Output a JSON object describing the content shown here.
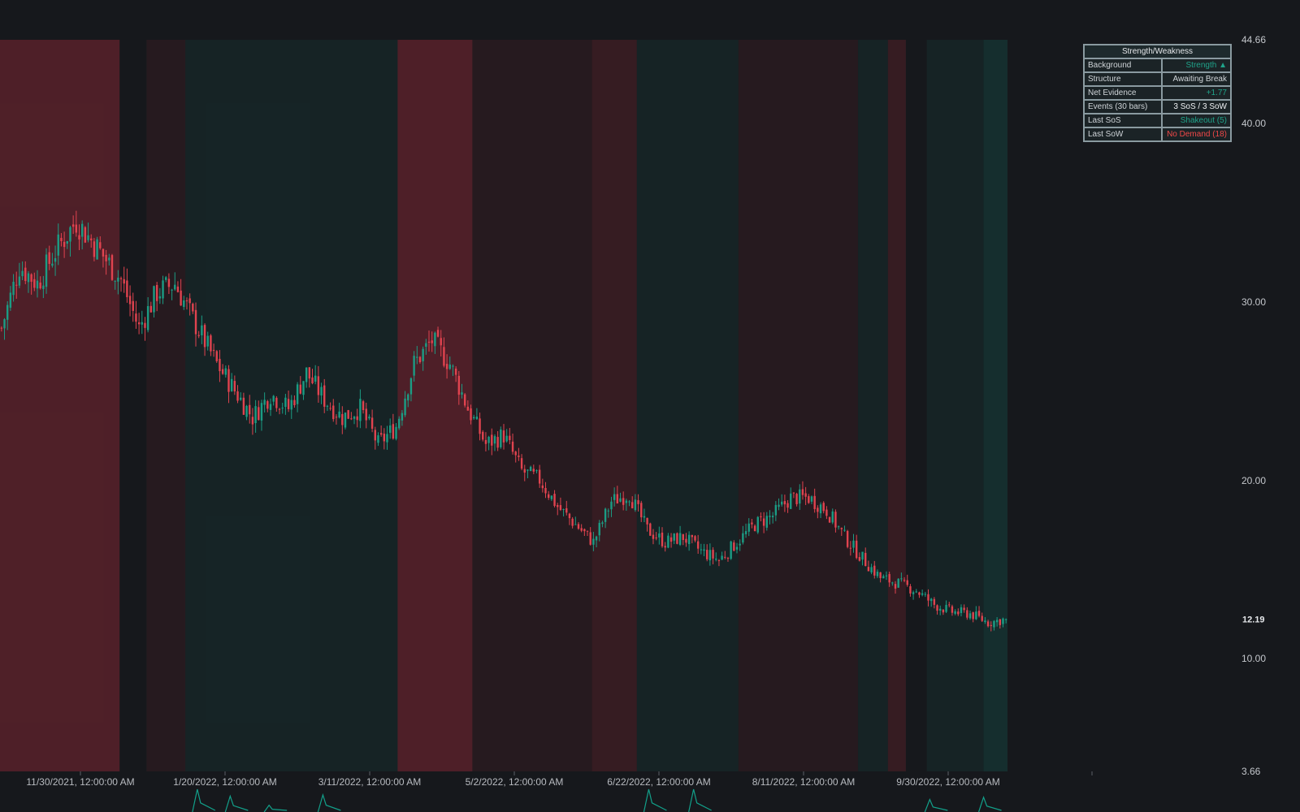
{
  "chart_data": {
    "type": "candlestick",
    "x_ticks": [
      "11/30/2021, 12:00:00 AM",
      "1/20/2022, 12:00:00 AM",
      "3/11/2022, 12:00:00 AM",
      "5/2/2022, 12:00:00 AM",
      "6/22/2022, 12:00:00 AM",
      "8/11/2022, 12:00:00 AM",
      "9/30/2022, 12:00:00 AM"
    ],
    "y_ticks": [
      "44.66",
      "40.00",
      "30.00",
      "20.00",
      "10.00",
      "3.66"
    ],
    "last_price_label": "12.19",
    "ylim": [
      3.66,
      44.66
    ],
    "close_path": [
      [
        0,
        28.5
      ],
      [
        6,
        32.0
      ],
      [
        12,
        31.0
      ],
      [
        18,
        32.8
      ],
      [
        25,
        34.5
      ],
      [
        32,
        33.0
      ],
      [
        40,
        31.2
      ],
      [
        46,
        28.5
      ],
      [
        52,
        30.5
      ],
      [
        58,
        31.0
      ],
      [
        64,
        29.0
      ],
      [
        72,
        26.5
      ],
      [
        78,
        25.0
      ],
      [
        84,
        23.5
      ],
      [
        90,
        24.8
      ],
      [
        96,
        24.0
      ],
      [
        102,
        26.0
      ],
      [
        108,
        24.5
      ],
      [
        114,
        23.5
      ],
      [
        120,
        24.0
      ],
      [
        126,
        22.0
      ],
      [
        132,
        23.0
      ],
      [
        138,
        26.5
      ],
      [
        144,
        27.8
      ],
      [
        150,
        26.5
      ],
      [
        156,
        24.0
      ],
      [
        162,
        22.0
      ],
      [
        168,
        22.5
      ],
      [
        174,
        20.5
      ],
      [
        180,
        20.0
      ],
      [
        186,
        18.5
      ],
      [
        192,
        17.5
      ],
      [
        198,
        16.5
      ],
      [
        204,
        18.8
      ],
      [
        210,
        19.2
      ],
      [
        216,
        17.2
      ],
      [
        222,
        16.5
      ],
      [
        228,
        16.8
      ],
      [
        234,
        16.0
      ],
      [
        240,
        15.5
      ],
      [
        246,
        16.5
      ],
      [
        252,
        17.5
      ],
      [
        258,
        18.0
      ],
      [
        264,
        19.0
      ],
      [
        270,
        19.0
      ],
      [
        276,
        18.3
      ],
      [
        282,
        16.8
      ],
      [
        288,
        15.6
      ],
      [
        294,
        14.5
      ],
      [
        300,
        14.2
      ],
      [
        306,
        13.8
      ],
      [
        312,
        13.0
      ],
      [
        318,
        12.6
      ],
      [
        324,
        12.5
      ],
      [
        330,
        12.0
      ],
      [
        336,
        12.19
      ]
    ],
    "regimes": [
      {
        "start": 0,
        "end": 40,
        "kind": "weakness-strong"
      },
      {
        "start": 40,
        "end": 49,
        "kind": "neutral"
      },
      {
        "start": 49,
        "end": 62,
        "kind": "weakness-faint"
      },
      {
        "start": 62,
        "end": 133,
        "kind": "strength-faint"
      },
      {
        "start": 133,
        "end": 158,
        "kind": "weakness-strong"
      },
      {
        "start": 158,
        "end": 198,
        "kind": "weakness-faint"
      },
      {
        "start": 198,
        "end": 213,
        "kind": "weakness-medium"
      },
      {
        "start": 213,
        "end": 247,
        "kind": "strength-faint"
      },
      {
        "start": 247,
        "end": 287,
        "kind": "weakness-faint"
      },
      {
        "start": 287,
        "end": 297,
        "kind": "strength-faint"
      },
      {
        "start": 297,
        "end": 303,
        "kind": "weakness-medium"
      },
      {
        "start": 303,
        "end": 310,
        "kind": "neutral"
      },
      {
        "start": 310,
        "end": 329,
        "kind": "strength-faint"
      },
      {
        "start": 329,
        "end": 337,
        "kind": "strength-medium"
      }
    ],
    "oscillator_peaks": [
      {
        "x": 66,
        "v": 1.0
      },
      {
        "x": 77,
        "v": 0.7
      },
      {
        "x": 90,
        "v": 0.3
      },
      {
        "x": 108,
        "v": 0.75
      },
      {
        "x": 217,
        "v": 1.0
      },
      {
        "x": 232,
        "v": 1.0
      },
      {
        "x": 311,
        "v": 0.55
      },
      {
        "x": 329,
        "v": 0.65
      }
    ],
    "colors": {
      "up": "#1b9c84",
      "down": "#e0434f",
      "strength": "#12a08a",
      "weakness": "#c83040"
    }
  },
  "panel": {
    "title": "Strength/Weakness",
    "rows": [
      {
        "label": "Background",
        "value": "Strength ▲",
        "tone": "green"
      },
      {
        "label": "Structure",
        "value": "Awaiting Break",
        "tone": "plain"
      },
      {
        "label": "Net Evidence",
        "value": "+1.77",
        "tone": "green"
      },
      {
        "label": "Events (30 bars)",
        "value": "3 SoS / 3 SoW",
        "tone": "white"
      },
      {
        "label": "Last SoS",
        "value": "Shakeout (5)",
        "tone": "green"
      },
      {
        "label": "Last SoW",
        "value": "No Demand (18)",
        "tone": "red"
      }
    ]
  }
}
